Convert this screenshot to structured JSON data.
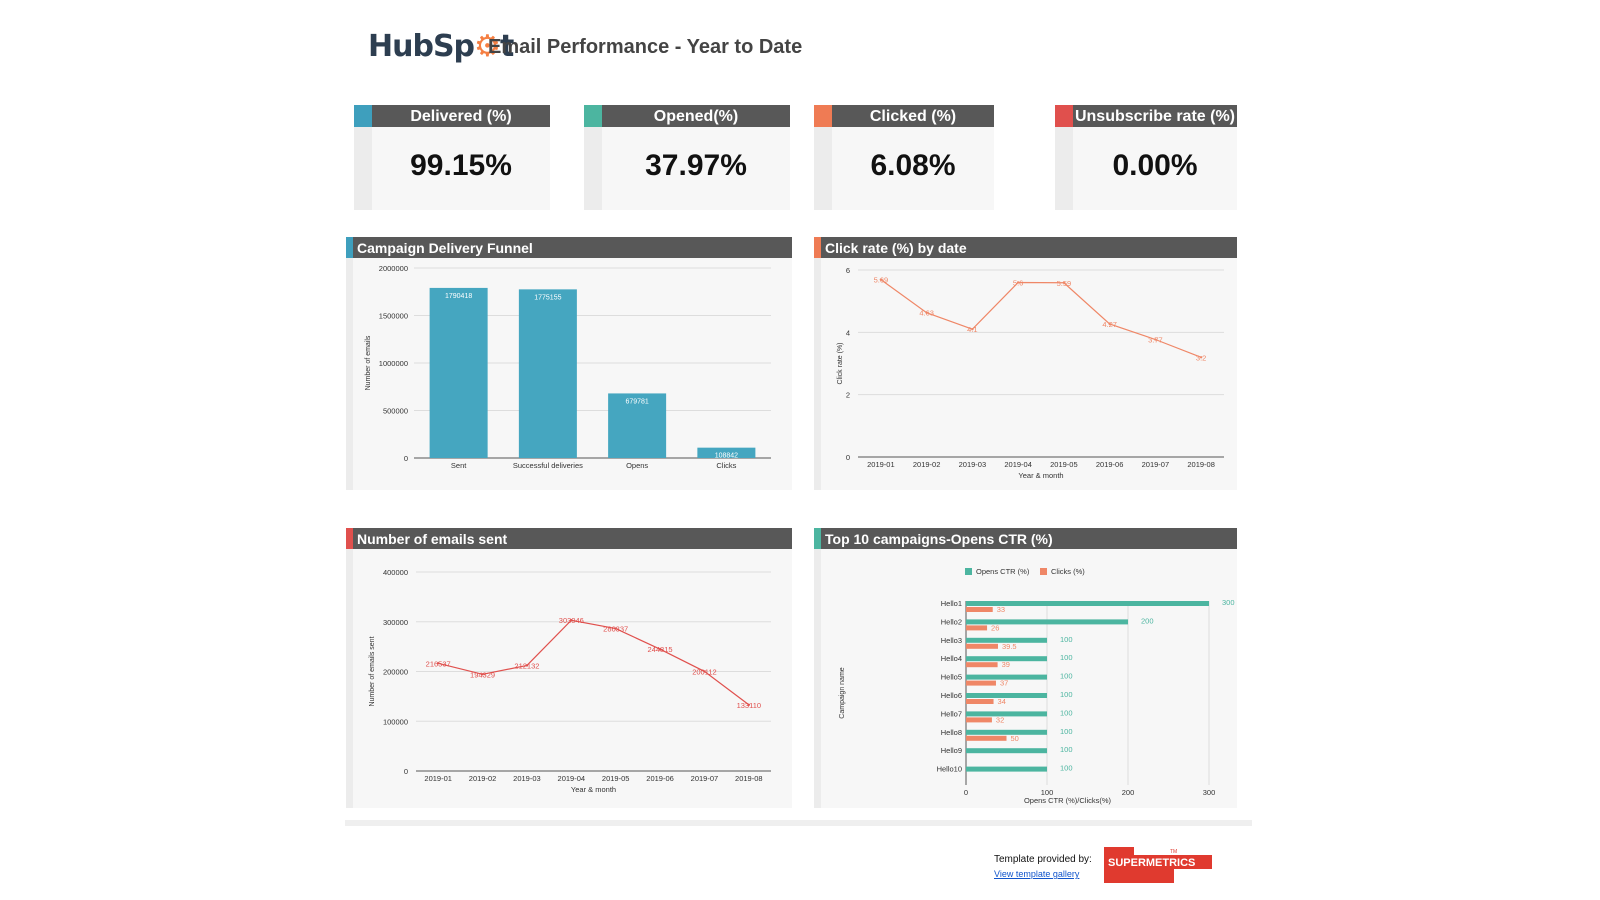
{
  "header": {
    "logo_text_a": "HubSp",
    "logo_text_b": "t",
    "title": "Email Performance - Year to Date"
  },
  "kpis": [
    {
      "label": "Delivered (%)",
      "value": "99.15%",
      "color": "#3e9fbd"
    },
    {
      "label": "Opened(%)",
      "value": "37.97%",
      "color": "#4cb5a0"
    },
    {
      "label": "Clicked (%)",
      "value": "6.08%",
      "color": "#ef7b54"
    },
    {
      "label": "Unsubscribe rate (%)",
      "value": "0.00%",
      "color": "#e0504d"
    }
  ],
  "panels": {
    "funnel": {
      "title": "Campaign Delivery Funnel",
      "color": "#3e9fbd"
    },
    "clickrate": {
      "title": "Click rate (%) by date",
      "color": "#ef7b54"
    },
    "sent": {
      "title": "Number of emails sent",
      "color": "#e0504d"
    },
    "top10": {
      "title": "Top 10 campaigns-Opens CTR (%)",
      "color": "#4cb5a0"
    }
  },
  "chart_data": [
    {
      "type": "bar",
      "title": "Campaign Delivery Funnel",
      "categories": [
        "Sent",
        "Successful deliveries",
        "Opens",
        "Clicks"
      ],
      "values": [
        1790418,
        1775155,
        679781,
        108842
      ],
      "ylabel": "Number of emails",
      "xlabel": "",
      "ylim": [
        0,
        2000000
      ],
      "yticks": [
        0,
        500000,
        1000000,
        1500000,
        2000000
      ],
      "color": "#45a6c0"
    },
    {
      "type": "line",
      "title": "Click rate (%) by date",
      "x": [
        "2019-01",
        "2019-02",
        "2019-03",
        "2019-04",
        "2019-05",
        "2019-06",
        "2019-07",
        "2019-08"
      ],
      "values": [
        5.69,
        4.63,
        4.1,
        5.6,
        5.59,
        4.27,
        3.77,
        3.2
      ],
      "labels": [
        "5.69",
        "4.63",
        "4.1",
        "5.6",
        "5.59",
        "4.27",
        "3.77",
        "3.2"
      ],
      "ylabel": "Click rate (%)",
      "xlabel": "Year & month",
      "ylim": [
        0,
        6
      ],
      "yticks": [
        0,
        2,
        4,
        6
      ],
      "color": "#ef8767"
    },
    {
      "type": "line",
      "title": "Number of emails sent",
      "x": [
        "2019-01",
        "2019-02",
        "2019-03",
        "2019-04",
        "2019-05",
        "2019-06",
        "2019-07",
        "2019-08"
      ],
      "values": [
        216537,
        194329,
        212132,
        303046,
        286337,
        244815,
        200112,
        133110
      ],
      "ylabel": "Number of emails sent",
      "xlabel": "Year & month",
      "ylim": [
        0,
        400000
      ],
      "yticks": [
        0,
        100000,
        200000,
        300000,
        400000
      ],
      "color": "#e0504d"
    },
    {
      "type": "bar",
      "orientation": "horizontal",
      "title": "Top 10 campaigns-Opens CTR (%)",
      "categories": [
        "Hello1",
        "Hello2",
        "Hello3",
        "Hello4",
        "Hello5",
        "Hello6",
        "Hello7",
        "Hello8",
        "Hello9",
        "Hello10"
      ],
      "series": [
        {
          "name": "Opens CTR (%)",
          "values": [
            300,
            200,
            100,
            100,
            100,
            100,
            100,
            100,
            100,
            100
          ],
          "labels": [
            "300",
            "200",
            "100",
            "100",
            "100",
            "100",
            "100",
            "100",
            "100",
            "100"
          ],
          "color": "#4cb5a0"
        },
        {
          "name": "Clicks (%)",
          "values": [
            33,
            26,
            39.5,
            39,
            37,
            34,
            32,
            50,
            null,
            null
          ],
          "labels": [
            "33",
            "26",
            "39.5",
            "39",
            "37",
            "34",
            "32",
            "50",
            "",
            ""
          ],
          "color": "#ef8767"
        }
      ],
      "ylabel": "Campaign name",
      "xlabel": "Opens CTR (%)/Clicks(%)",
      "xlim": [
        0,
        300
      ],
      "xticks": [
        0,
        100,
        200,
        300
      ],
      "legend": "top"
    }
  ],
  "footer": {
    "template_text": "Template provided by:",
    "link_text": "View template gallery",
    "brand": "SUPERMETRICS",
    "brand_mark": "TM"
  }
}
